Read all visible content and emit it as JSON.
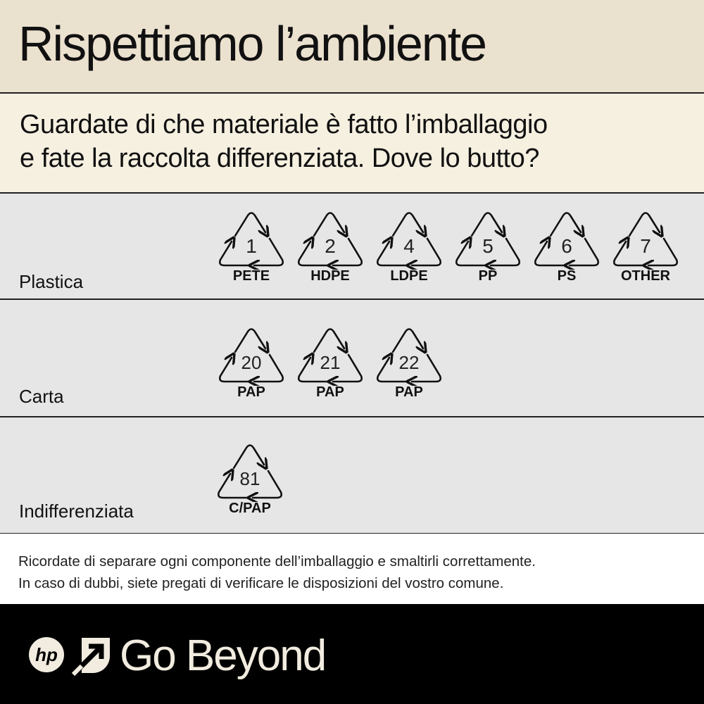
{
  "header": {
    "title": "Rispettiamo l’ambiente"
  },
  "subtitle": {
    "line1": "Guardate di che materiale è fatto l’imballaggio",
    "line2": "e fate la raccolta differenziata.  Dove lo butto?"
  },
  "rows": [
    {
      "label": "Plastica",
      "symbols": [
        {
          "num": "1",
          "code": "PETE"
        },
        {
          "num": "2",
          "code": "HDPE"
        },
        {
          "num": "4",
          "code": "LDPE"
        },
        {
          "num": "5",
          "code": "PP"
        },
        {
          "num": "6",
          "code": "PS"
        },
        {
          "num": "7",
          "code": "OTHER"
        }
      ]
    },
    {
      "label": "Carta",
      "symbols": [
        {
          "num": "20",
          "code": "PAP"
        },
        {
          "num": "21",
          "code": "PAP"
        },
        {
          "num": "22",
          "code": "PAP"
        }
      ]
    },
    {
      "label": "Indifferenziata",
      "symbols": [
        {
          "num": "81",
          "code": "C/PAP"
        }
      ]
    }
  ],
  "note": {
    "line1": "Ricordate di separare ogni componente dell’imballaggio e smaltirli correttamente.",
    "line2": "In caso di dubbi, siete pregati di verificare le disposizioni del vostro comune."
  },
  "footer": {
    "logo": "hp",
    "tagline": "Go Beyond"
  },
  "colors": {
    "header_bg": "#ebe1cf",
    "subtitle_bg": "#f6f0e1",
    "row_bg": "#e6e6e6",
    "footer_bg": "#000000",
    "footer_text": "#f1ecdf"
  }
}
